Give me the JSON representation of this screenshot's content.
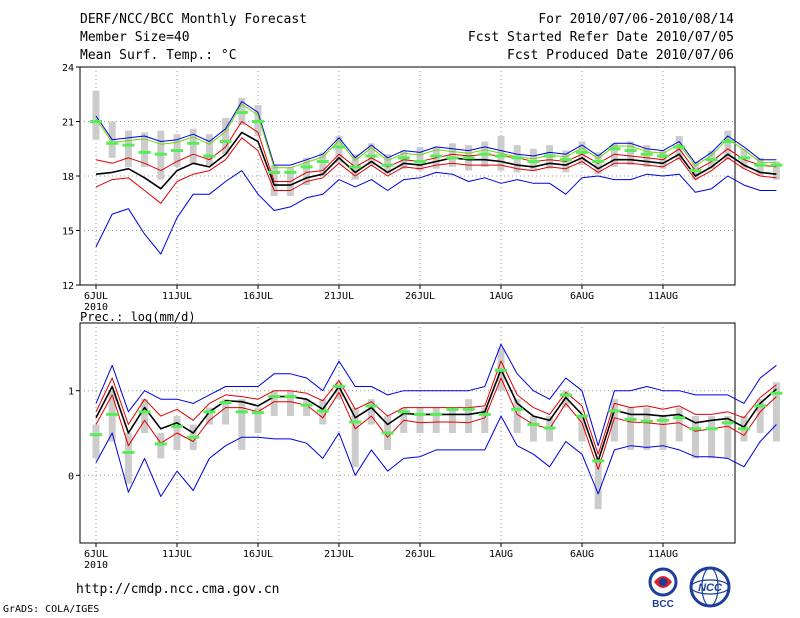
{
  "header": {
    "title": "DERF/NCC/BCC Monthly Forecast",
    "member_size": "Member Size=40",
    "variable": "Mean Surf. Temp.: °C",
    "period": "For 2010/07/06-2010/08/14",
    "start_date": "Fcst Started Refer Date 2010/07/05",
    "produced_date": "Fcst Produced Date 2010/07/06"
  },
  "footer": {
    "url": "http://cmdp.ncc.cma.gov.cn",
    "grads": "GrADS: COLA/IGES",
    "bcc_logo_text": "BCC",
    "ncc_logo_text": "NCC"
  },
  "colors": {
    "boxes": "#cccccc",
    "ensemble_mean": "#000000",
    "spread_inner": "#e00000",
    "spread_outer": "#0000e0",
    "center_line": "#6fd900",
    "median_marker": "#55ee55",
    "grid": "#999999"
  },
  "chart_data": [
    {
      "type": "line",
      "title": "Mean Surf. Temp.: °C",
      "x_ticks": [
        "6JUL",
        "11JUL",
        "16JUL",
        "21JUL",
        "26JUL",
        "1AUG",
        "6AUG",
        "11AUG"
      ],
      "year_label": "2010",
      "ylim": [
        12,
        24
      ],
      "yticks": [
        "12",
        "15",
        "18",
        "21",
        "24"
      ],
      "series": [
        {
          "name": "box_top",
          "values": [
            22.7,
            21.0,
            20.5,
            20.4,
            20.5,
            20.3,
            20.6,
            20.3,
            21.2,
            22.3,
            21.9,
            18.6,
            18.5,
            19.0,
            19.3,
            20.2,
            19.2,
            19.8,
            19.2,
            19.4,
            19.6,
            19.6,
            19.8,
            19.7,
            19.9,
            20.2,
            19.7,
            19.5,
            19.7,
            19.4,
            19.9,
            19.3,
            19.8,
            19.9,
            19.7,
            19.4,
            20.2,
            18.8,
            19.4,
            20.5,
            19.5,
            19.0,
            18.8
          ]
        },
        {
          "name": "box_bottom",
          "values": [
            20.0,
            19.0,
            18.5,
            18.5,
            17.8,
            18.5,
            18.7,
            18.6,
            19.2,
            20.8,
            20.2,
            16.9,
            16.9,
            17.5,
            18.0,
            18.7,
            17.8,
            18.6,
            18.1,
            18.4,
            18.3,
            18.4,
            18.5,
            18.3,
            18.5,
            18.3,
            18.2,
            18.3,
            18.4,
            18.2,
            18.6,
            18.1,
            18.5,
            18.6,
            18.5,
            18.4,
            18.9,
            17.8,
            18.4,
            18.9,
            18.4,
            18.0,
            17.8
          ]
        },
        {
          "name": "median",
          "values": [
            21.0,
            19.8,
            19.7,
            19.3,
            19.2,
            19.4,
            19.8,
            19.1,
            19.9,
            21.5,
            21.0,
            18.2,
            18.2,
            18.5,
            18.8,
            19.6,
            18.5,
            19.1,
            18.6,
            19.0,
            18.8,
            19.1,
            19.0,
            19.0,
            19.2,
            19.1,
            19.0,
            18.8,
            19.1,
            18.9,
            19.3,
            18.8,
            19.5,
            19.4,
            19.2,
            19.1,
            19.6,
            18.3,
            18.9,
            19.9,
            19.0,
            18.6,
            18.6
          ]
        },
        {
          "name": "outer_upper",
          "values": [
            21.3,
            20.0,
            20.1,
            20.2,
            19.9,
            20.0,
            20.3,
            19.9,
            20.6,
            22.1,
            21.5,
            18.6,
            18.6,
            18.9,
            19.2,
            20.1,
            19.0,
            19.7,
            19.0,
            19.4,
            19.3,
            19.6,
            19.5,
            19.4,
            19.6,
            19.4,
            19.2,
            19.1,
            19.3,
            19.2,
            19.7,
            19.1,
            19.8,
            19.8,
            19.5,
            19.4,
            19.9,
            18.7,
            19.3,
            20.2,
            19.6,
            18.9,
            18.9
          ]
        },
        {
          "name": "inner_upper",
          "values": [
            18.9,
            18.7,
            19.0,
            18.7,
            18.3,
            18.8,
            19.2,
            18.9,
            19.6,
            21.0,
            20.4,
            17.7,
            17.7,
            18.2,
            18.3,
            19.2,
            18.5,
            19.0,
            18.5,
            18.9,
            18.8,
            19.0,
            19.2,
            19.1,
            19.2,
            19.1,
            19.0,
            18.8,
            18.9,
            18.8,
            19.2,
            18.7,
            19.2,
            19.1,
            19.0,
            18.9,
            19.5,
            18.3,
            18.8,
            19.5,
            18.9,
            18.6,
            18.5
          ]
        },
        {
          "name": "ensemble_mean",
          "values": [
            18.1,
            18.2,
            18.4,
            17.9,
            17.3,
            18.3,
            18.7,
            18.5,
            19.2,
            20.4,
            19.9,
            17.5,
            17.5,
            17.9,
            18.1,
            19.0,
            18.2,
            18.8,
            18.2,
            18.7,
            18.6,
            18.8,
            19.0,
            18.9,
            18.9,
            18.8,
            18.6,
            18.5,
            18.7,
            18.6,
            19.0,
            18.4,
            18.9,
            18.9,
            18.8,
            18.7,
            19.2,
            18.0,
            18.5,
            19.2,
            18.6,
            18.2,
            18.1
          ]
        },
        {
          "name": "inner_lower",
          "values": [
            17.4,
            17.8,
            17.9,
            17.2,
            16.5,
            17.7,
            18.1,
            18.3,
            18.9,
            20.1,
            19.4,
            17.2,
            17.2,
            17.7,
            17.9,
            18.7,
            18.0,
            18.6,
            18.0,
            18.5,
            18.4,
            18.6,
            18.7,
            18.6,
            18.6,
            18.6,
            18.4,
            18.3,
            18.5,
            18.4,
            18.8,
            18.2,
            18.7,
            18.7,
            18.6,
            18.5,
            19.0,
            17.8,
            18.3,
            19.0,
            18.4,
            18.0,
            17.9
          ]
        },
        {
          "name": "outer_lower",
          "values": [
            14.1,
            15.9,
            16.2,
            14.8,
            13.7,
            15.7,
            17.0,
            17.0,
            17.7,
            18.3,
            17.0,
            16.1,
            16.3,
            16.8,
            17.0,
            17.8,
            17.4,
            17.8,
            17.2,
            17.8,
            17.9,
            18.2,
            18.1,
            17.7,
            17.9,
            17.6,
            17.8,
            17.6,
            17.6,
            17.0,
            17.9,
            18.0,
            17.8,
            17.8,
            18.1,
            18.0,
            18.1,
            17.1,
            17.3,
            18.0,
            17.5,
            17.2,
            17.2
          ]
        }
      ]
    },
    {
      "type": "line",
      "title": "Prec.: log(mm/d)",
      "x_ticks": [
        "6JUL",
        "11JUL",
        "16JUL",
        "21JUL",
        "26JUL",
        "1AUG",
        "6AUG",
        "11AUG"
      ],
      "year_label": "2010",
      "ylim": [
        -0.8,
        1.8
      ],
      "yticks": [
        "0",
        "1"
      ],
      "series": [
        {
          "name": "box_top",
          "values": [
            0.6,
            1.0,
            0.5,
            0.9,
            0.5,
            0.7,
            0.6,
            0.8,
            0.9,
            0.9,
            0.8,
            1.0,
            1.0,
            0.9,
            0.9,
            1.1,
            0.8,
            0.9,
            0.7,
            0.8,
            0.8,
            0.8,
            0.8,
            0.9,
            0.8,
            1.5,
            0.9,
            0.7,
            0.7,
            1.0,
            0.7,
            0.2,
            0.9,
            0.8,
            0.8,
            0.7,
            0.8,
            0.7,
            0.7,
            0.7,
            0.7,
            0.9,
            1.1
          ]
        },
        {
          "name": "box_bottom",
          "values": [
            0.2,
            0.4,
            -0.1,
            0.5,
            0.2,
            0.3,
            0.3,
            0.6,
            0.6,
            0.3,
            0.5,
            0.7,
            0.7,
            0.7,
            0.6,
            0.9,
            0.1,
            0.6,
            0.3,
            0.5,
            0.5,
            0.5,
            0.5,
            0.5,
            0.5,
            1.0,
            0.5,
            0.4,
            0.4,
            0.8,
            0.4,
            -0.4,
            0.4,
            0.3,
            0.3,
            0.3,
            0.4,
            0.2,
            0.2,
            0.2,
            0.4,
            0.5,
            0.4
          ]
        },
        {
          "name": "median",
          "values": [
            0.48,
            0.72,
            0.27,
            0.75,
            0.37,
            0.58,
            0.45,
            0.75,
            0.86,
            0.75,
            0.74,
            0.93,
            0.93,
            0.83,
            0.76,
            1.05,
            0.63,
            0.82,
            0.5,
            0.75,
            0.72,
            0.72,
            0.78,
            0.78,
            0.72,
            1.24,
            0.78,
            0.6,
            0.56,
            0.95,
            0.7,
            0.17,
            0.76,
            0.66,
            0.64,
            0.65,
            0.68,
            0.55,
            0.55,
            0.62,
            0.55,
            0.82,
            0.97
          ]
        },
        {
          "name": "outer_upper",
          "values": [
            0.85,
            1.3,
            0.75,
            1.0,
            0.9,
            0.9,
            0.85,
            0.95,
            1.05,
            1.05,
            1.05,
            1.2,
            1.2,
            1.15,
            1.0,
            1.35,
            1.05,
            1.05,
            0.95,
            1.0,
            1.0,
            1.0,
            1.0,
            1.0,
            1.05,
            1.55,
            1.2,
            1.0,
            0.9,
            1.15,
            1.0,
            0.35,
            1.0,
            1.0,
            1.05,
            1.0,
            1.0,
            0.95,
            0.95,
            0.95,
            0.85,
            1.15,
            1.3
          ]
        },
        {
          "name": "inner_upper",
          "values": [
            0.75,
            1.15,
            0.6,
            0.9,
            0.7,
            0.78,
            0.65,
            0.85,
            0.95,
            0.93,
            0.9,
            1.0,
            1.0,
            0.97,
            0.88,
            1.12,
            0.78,
            0.87,
            0.7,
            0.8,
            0.8,
            0.8,
            0.8,
            0.8,
            0.82,
            1.35,
            0.95,
            0.8,
            0.72,
            0.98,
            0.82,
            0.25,
            0.85,
            0.8,
            0.82,
            0.78,
            0.82,
            0.72,
            0.72,
            0.75,
            0.68,
            0.92,
            1.07
          ]
        },
        {
          "name": "ensemble_mean",
          "values": [
            0.68,
            1.05,
            0.5,
            0.8,
            0.55,
            0.62,
            0.5,
            0.75,
            0.88,
            0.87,
            0.82,
            0.93,
            0.93,
            0.9,
            0.78,
            1.05,
            0.68,
            0.8,
            0.6,
            0.73,
            0.72,
            0.72,
            0.72,
            0.72,
            0.75,
            1.25,
            0.85,
            0.7,
            0.65,
            0.92,
            0.72,
            0.17,
            0.77,
            0.72,
            0.72,
            0.7,
            0.72,
            0.62,
            0.65,
            0.67,
            0.57,
            0.85,
            1.02
          ]
        },
        {
          "name": "inner_lower",
          "values": [
            0.6,
            0.95,
            0.35,
            0.65,
            0.38,
            0.5,
            0.4,
            0.65,
            0.8,
            0.8,
            0.75,
            0.87,
            0.87,
            0.83,
            0.68,
            0.98,
            0.55,
            0.7,
            0.45,
            0.65,
            0.62,
            0.63,
            0.63,
            0.62,
            0.68,
            1.15,
            0.72,
            0.6,
            0.55,
            0.85,
            0.62,
            0.07,
            0.68,
            0.63,
            0.62,
            0.6,
            0.62,
            0.52,
            0.55,
            0.58,
            0.47,
            0.75,
            0.93
          ]
        },
        {
          "name": "outer_lower",
          "values": [
            0.15,
            0.5,
            -0.2,
            0.2,
            -0.25,
            0.05,
            -0.18,
            0.2,
            0.35,
            0.45,
            0.45,
            0.43,
            0.43,
            0.38,
            0.2,
            0.5,
            0.0,
            0.3,
            0.05,
            0.2,
            0.22,
            0.3,
            0.3,
            0.3,
            0.3,
            0.7,
            0.35,
            0.25,
            0.1,
            0.4,
            0.25,
            -0.22,
            0.3,
            0.35,
            0.33,
            0.35,
            0.3,
            0.22,
            0.22,
            0.2,
            0.1,
            0.4,
            0.6
          ]
        }
      ]
    }
  ]
}
